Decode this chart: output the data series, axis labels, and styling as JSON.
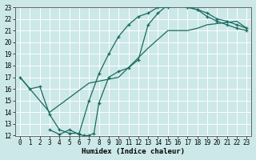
{
  "xlabel": "Humidex (Indice chaleur)",
  "bg_color": "#cce8e8",
  "grid_color": "#ffffff",
  "line_color": "#1a6b60",
  "xlim": [
    -0.5,
    23.5
  ],
  "ylim": [
    12,
    23
  ],
  "xticks": [
    0,
    1,
    2,
    3,
    4,
    5,
    6,
    7,
    8,
    9,
    10,
    11,
    12,
    13,
    14,
    15,
    16,
    17,
    18,
    19,
    20,
    21,
    22,
    23
  ],
  "yticks": [
    12,
    13,
    14,
    15,
    16,
    17,
    18,
    19,
    20,
    21,
    22,
    23
  ],
  "curve1_x": [
    0,
    1,
    2,
    3,
    4,
    5,
    6,
    7,
    8,
    9,
    10,
    11,
    12,
    13,
    14,
    15,
    16,
    17,
    18,
    19,
    20,
    21,
    22,
    23
  ],
  "curve1_y": [
    17,
    16,
    16.2,
    13.8,
    12.5,
    12.2,
    12.2,
    15,
    17.3,
    19,
    20.5,
    21.5,
    22.2,
    22.5,
    23,
    23.0,
    23.2,
    23,
    22.8,
    22.5,
    22,
    21.8,
    21.5,
    21.2
  ],
  "curve2_x": [
    3,
    4,
    5,
    6,
    6.5,
    7,
    7.5,
    8,
    9,
    10,
    11,
    12,
    13,
    14,
    15,
    16,
    17,
    18,
    19,
    20,
    21,
    22,
    23
  ],
  "curve2_y": [
    12.5,
    12.1,
    12.5,
    12.1,
    12.0,
    12.0,
    12.2,
    14.8,
    17,
    17.5,
    17.8,
    18.5,
    21.5,
    22.5,
    23.2,
    23.3,
    23.0,
    22.8,
    22.2,
    21.8,
    21.5,
    21.2,
    21.0
  ],
  "curve3_x": [
    0,
    3,
    7,
    10,
    13,
    15,
    17,
    18,
    19,
    20,
    21,
    22,
    23
  ],
  "curve3_y": [
    17,
    14,
    16.5,
    17.0,
    19.5,
    21.0,
    21.0,
    21.2,
    21.5,
    21.6,
    21.7,
    21.8,
    21.2
  ]
}
